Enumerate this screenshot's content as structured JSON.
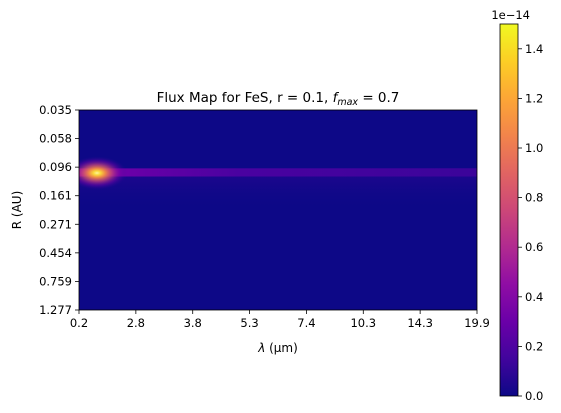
{
  "chart_data": {
    "type": "heatmap",
    "title_prefix": "Flux Map for FeS, r = 0.1, ",
    "title_sym": "f",
    "title_sub": "max",
    "title_suffix": " = 0.7",
    "xlabel_sym": "λ",
    "xlabel_rest": " (μm)",
    "ylabel": "R (AU)",
    "x_ticks": [
      "0.2",
      "2.8",
      "3.8",
      "5.3",
      "7.4",
      "10.3",
      "14.3",
      "19.9"
    ],
    "y_ticks": [
      "0.035",
      "0.058",
      "0.096",
      "0.161",
      "0.271",
      "0.454",
      "0.759",
      "1.277"
    ],
    "colorbar": {
      "colormap": "plasma",
      "range": [
        0,
        1.5e-14
      ],
      "offset_label": "1e−14",
      "ticks": [
        "0.0",
        "0.2",
        "0.4",
        "0.6",
        "0.8",
        "1.0",
        "1.2",
        "1.4"
      ],
      "tick_values": [
        0.0,
        0.2,
        0.4,
        0.6,
        0.8,
        1.0,
        1.2,
        1.4
      ],
      "max_value": 1.5
    },
    "features": {
      "peak_value": 1.5,
      "peak_wavelength_um": 0.6,
      "peak_radius_au": 0.1,
      "band_radius_au": 0.1,
      "band_level_far": 0.12
    }
  }
}
